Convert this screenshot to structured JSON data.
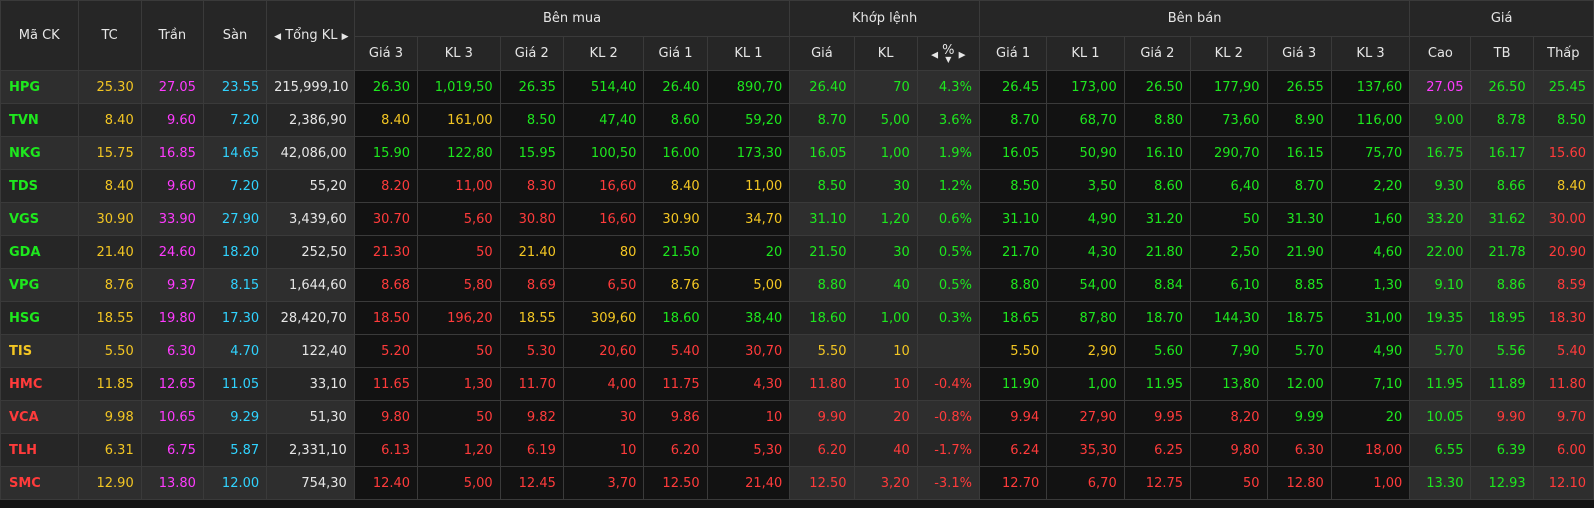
{
  "colors": {
    "up": "#1ee81e",
    "down": "#ff3b3b",
    "ref": "#f3c623",
    "ceiling": "#ff3bff",
    "floor": "#30d3ff",
    "neutral": "#e6e6e6"
  },
  "icons": {
    "left_arrow": "◀",
    "right_arrow": "▶",
    "sort_desc": "▼"
  },
  "header": {
    "ma_ck": "Mã CK",
    "tc": "TC",
    "tran": "Trần",
    "san": "Sàn",
    "tong_kl": "Tổng KL",
    "ben_mua": "Bên mua",
    "khop_lenh": "Khớp lệnh",
    "ben_ban": "Bên bán",
    "gia": "Giá",
    "gia3": "Giá 3",
    "kl3": "KL 3",
    "gia2": "Giá 2",
    "kl2": "KL 2",
    "gia1": "Giá 1",
    "kl1": "KL 1",
    "khop_gia": "Giá",
    "khop_kl": "KL",
    "khop_pct": "%",
    "cao": "Cao",
    "tb": "TB",
    "thap": "Thấp"
  },
  "rows": [
    {
      "sym": "HPG",
      "tc": "25.30",
      "tran": "27.05",
      "san": "23.55",
      "tongkl": "215,999,10",
      "b3": [
        "26.30",
        "1,019,50",
        "g"
      ],
      "b2": [
        "26.35",
        "514,40",
        "g"
      ],
      "b1": [
        "26.40",
        "890,70",
        "g"
      ],
      "m": [
        "26.40",
        "70",
        "4.3%",
        "g"
      ],
      "s1": [
        "26.45",
        "173,00",
        "g"
      ],
      "s2": [
        "26.50",
        "177,90",
        "g"
      ],
      "s3": [
        "26.55",
        "137,60",
        "g"
      ],
      "cao": [
        "27.05",
        "p"
      ],
      "tb": [
        "26.50",
        "g"
      ],
      "thap": [
        "25.45",
        "g"
      ],
      "symc": "g"
    },
    {
      "sym": "TVN",
      "tc": "8.40",
      "tran": "9.60",
      "san": "7.20",
      "tongkl": "2,386,90",
      "b3": [
        "8.40",
        "161,00",
        "y"
      ],
      "b2": [
        "8.50",
        "47,40",
        "g"
      ],
      "b1": [
        "8.60",
        "59,20",
        "g"
      ],
      "m": [
        "8.70",
        "5,00",
        "3.6%",
        "g"
      ],
      "s1": [
        "8.70",
        "68,70",
        "g"
      ],
      "s2": [
        "8.80",
        "73,60",
        "g"
      ],
      "s3": [
        "8.90",
        "116,00",
        "g"
      ],
      "cao": [
        "9.00",
        "g"
      ],
      "tb": [
        "8.78",
        "g"
      ],
      "thap": [
        "8.50",
        "g"
      ],
      "symc": "g"
    },
    {
      "sym": "NKG",
      "tc": "15.75",
      "tran": "16.85",
      "san": "14.65",
      "tongkl": "42,086,00",
      "b3": [
        "15.90",
        "122,80",
        "g"
      ],
      "b2": [
        "15.95",
        "100,50",
        "g"
      ],
      "b1": [
        "16.00",
        "173,30",
        "g"
      ],
      "m": [
        "16.05",
        "1,00",
        "1.9%",
        "g"
      ],
      "s1": [
        "16.05",
        "50,90",
        "g"
      ],
      "s2": [
        "16.10",
        "290,70",
        "g"
      ],
      "s3": [
        "16.15",
        "75,70",
        "g"
      ],
      "cao": [
        "16.75",
        "g"
      ],
      "tb": [
        "16.17",
        "g"
      ],
      "thap": [
        "15.60",
        "r"
      ],
      "symc": "g"
    },
    {
      "sym": "TDS",
      "tc": "8.40",
      "tran": "9.60",
      "san": "7.20",
      "tongkl": "55,20",
      "b3": [
        "8.20",
        "11,00",
        "r"
      ],
      "b2": [
        "8.30",
        "16,60",
        "r"
      ],
      "b1": [
        "8.40",
        "11,00",
        "y"
      ],
      "m": [
        "8.50",
        "30",
        "1.2%",
        "g"
      ],
      "s1": [
        "8.50",
        "3,50",
        "g"
      ],
      "s2": [
        "8.60",
        "6,40",
        "g"
      ],
      "s3": [
        "8.70",
        "2,20",
        "g"
      ],
      "cao": [
        "9.30",
        "g"
      ],
      "tb": [
        "8.66",
        "g"
      ],
      "thap": [
        "8.40",
        "y"
      ],
      "symc": "g"
    },
    {
      "sym": "VGS",
      "tc": "30.90",
      "tran": "33.90",
      "san": "27.90",
      "tongkl": "3,439,60",
      "b3": [
        "30.70",
        "5,60",
        "r"
      ],
      "b2": [
        "30.80",
        "16,60",
        "r"
      ],
      "b1": [
        "30.90",
        "34,70",
        "y"
      ],
      "m": [
        "31.10",
        "1,20",
        "0.6%",
        "g"
      ],
      "s1": [
        "31.10",
        "4,90",
        "g"
      ],
      "s2": [
        "31.20",
        "50",
        "g"
      ],
      "s3": [
        "31.30",
        "1,60",
        "g"
      ],
      "cao": [
        "33.20",
        "g"
      ],
      "tb": [
        "31.62",
        "g"
      ],
      "thap": [
        "30.00",
        "r"
      ],
      "symc": "g"
    },
    {
      "sym": "GDA",
      "tc": "21.40",
      "tran": "24.60",
      "san": "18.20",
      "tongkl": "252,50",
      "b3": [
        "21.30",
        "50",
        "r"
      ],
      "b2": [
        "21.40",
        "80",
        "y"
      ],
      "b1": [
        "21.50",
        "20",
        "g"
      ],
      "m": [
        "21.50",
        "30",
        "0.5%",
        "g"
      ],
      "s1": [
        "21.70",
        "4,30",
        "g"
      ],
      "s2": [
        "21.80",
        "2,50",
        "g"
      ],
      "s3": [
        "21.90",
        "4,60",
        "g"
      ],
      "cao": [
        "22.00",
        "g"
      ],
      "tb": [
        "21.78",
        "g"
      ],
      "thap": [
        "20.90",
        "r"
      ],
      "symc": "g"
    },
    {
      "sym": "VPG",
      "tc": "8.76",
      "tran": "9.37",
      "san": "8.15",
      "tongkl": "1,644,60",
      "b3": [
        "8.68",
        "5,80",
        "r"
      ],
      "b2": [
        "8.69",
        "6,50",
        "r"
      ],
      "b1": [
        "8.76",
        "5,00",
        "y"
      ],
      "m": [
        "8.80",
        "40",
        "0.5%",
        "g"
      ],
      "s1": [
        "8.80",
        "54,00",
        "g"
      ],
      "s2": [
        "8.84",
        "6,10",
        "g"
      ],
      "s3": [
        "8.85",
        "1,30",
        "g"
      ],
      "cao": [
        "9.10",
        "g"
      ],
      "tb": [
        "8.86",
        "g"
      ],
      "thap": [
        "8.59",
        "r"
      ],
      "symc": "g"
    },
    {
      "sym": "HSG",
      "tc": "18.55",
      "tran": "19.80",
      "san": "17.30",
      "tongkl": "28,420,70",
      "b3": [
        "18.50",
        "196,20",
        "r"
      ],
      "b2": [
        "18.55",
        "309,60",
        "y"
      ],
      "b1": [
        "18.60",
        "38,40",
        "g"
      ],
      "m": [
        "18.60",
        "1,00",
        "0.3%",
        "g"
      ],
      "s1": [
        "18.65",
        "87,80",
        "g"
      ],
      "s2": [
        "18.70",
        "144,30",
        "g"
      ],
      "s3": [
        "18.75",
        "31,00",
        "g"
      ],
      "cao": [
        "19.35",
        "g"
      ],
      "tb": [
        "18.95",
        "g"
      ],
      "thap": [
        "18.30",
        "r"
      ],
      "symc": "g"
    },
    {
      "sym": "TIS",
      "tc": "5.50",
      "tran": "6.30",
      "san": "4.70",
      "tongkl": "122,40",
      "b3": [
        "5.20",
        "50",
        "r"
      ],
      "b2": [
        "5.30",
        "20,60",
        "r"
      ],
      "b1": [
        "5.40",
        "30,70",
        "r"
      ],
      "m": [
        "5.50",
        "10",
        "",
        "y"
      ],
      "s1": [
        "5.50",
        "2,90",
        "y"
      ],
      "s2": [
        "5.60",
        "7,90",
        "g"
      ],
      "s3": [
        "5.70",
        "4,90",
        "g"
      ],
      "cao": [
        "5.70",
        "g"
      ],
      "tb": [
        "5.56",
        "g"
      ],
      "thap": [
        "5.40",
        "r"
      ],
      "symc": "y"
    },
    {
      "sym": "HMC",
      "tc": "11.85",
      "tran": "12.65",
      "san": "11.05",
      "tongkl": "33,10",
      "b3": [
        "11.65",
        "1,30",
        "r"
      ],
      "b2": [
        "11.70",
        "4,00",
        "r"
      ],
      "b1": [
        "11.75",
        "4,30",
        "r"
      ],
      "m": [
        "11.80",
        "10",
        "-0.4%",
        "r"
      ],
      "s1": [
        "11.90",
        "1,00",
        "g"
      ],
      "s2": [
        "11.95",
        "13,80",
        "g"
      ],
      "s3": [
        "12.00",
        "7,10",
        "g"
      ],
      "cao": [
        "11.95",
        "g"
      ],
      "tb": [
        "11.89",
        "g"
      ],
      "thap": [
        "11.80",
        "r"
      ],
      "symc": "r"
    },
    {
      "sym": "VCA",
      "tc": "9.98",
      "tran": "10.65",
      "san": "9.29",
      "tongkl": "51,30",
      "b3": [
        "9.80",
        "50",
        "r"
      ],
      "b2": [
        "9.82",
        "30",
        "r"
      ],
      "b1": [
        "9.86",
        "10",
        "r"
      ],
      "m": [
        "9.90",
        "20",
        "-0.8%",
        "r"
      ],
      "s1": [
        "9.94",
        "27,90",
        "r"
      ],
      "s2": [
        "9.95",
        "8,20",
        "r"
      ],
      "s3": [
        "9.99",
        "20",
        "g"
      ],
      "cao": [
        "10.05",
        "g"
      ],
      "tb": [
        "9.90",
        "r"
      ],
      "thap": [
        "9.70",
        "r"
      ],
      "symc": "r"
    },
    {
      "sym": "TLH",
      "tc": "6.31",
      "tran": "6.75",
      "san": "5.87",
      "tongkl": "2,331,10",
      "b3": [
        "6.13",
        "1,20",
        "r"
      ],
      "b2": [
        "6.19",
        "10",
        "r"
      ],
      "b1": [
        "6.20",
        "5,30",
        "r"
      ],
      "m": [
        "6.20",
        "40",
        "-1.7%",
        "r"
      ],
      "s1": [
        "6.24",
        "35,30",
        "r"
      ],
      "s2": [
        "6.25",
        "9,80",
        "r"
      ],
      "s3": [
        "6.30",
        "18,00",
        "r"
      ],
      "cao": [
        "6.55",
        "g"
      ],
      "tb": [
        "6.39",
        "g"
      ],
      "thap": [
        "6.00",
        "r"
      ],
      "symc": "r"
    },
    {
      "sym": "SMC",
      "tc": "12.90",
      "tran": "13.80",
      "san": "12.00",
      "tongkl": "754,30",
      "b3": [
        "12.40",
        "5,00",
        "r"
      ],
      "b2": [
        "12.45",
        "3,70",
        "r"
      ],
      "b1": [
        "12.50",
        "21,40",
        "r"
      ],
      "m": [
        "12.50",
        "3,20",
        "-3.1%",
        "r"
      ],
      "s1": [
        "12.70",
        "6,70",
        "r"
      ],
      "s2": [
        "12.75",
        "50",
        "r"
      ],
      "s3": [
        "12.80",
        "1,00",
        "r"
      ],
      "cao": [
        "13.30",
        "g"
      ],
      "tb": [
        "12.93",
        "g"
      ],
      "thap": [
        "12.10",
        "r"
      ],
      "symc": "r"
    }
  ]
}
